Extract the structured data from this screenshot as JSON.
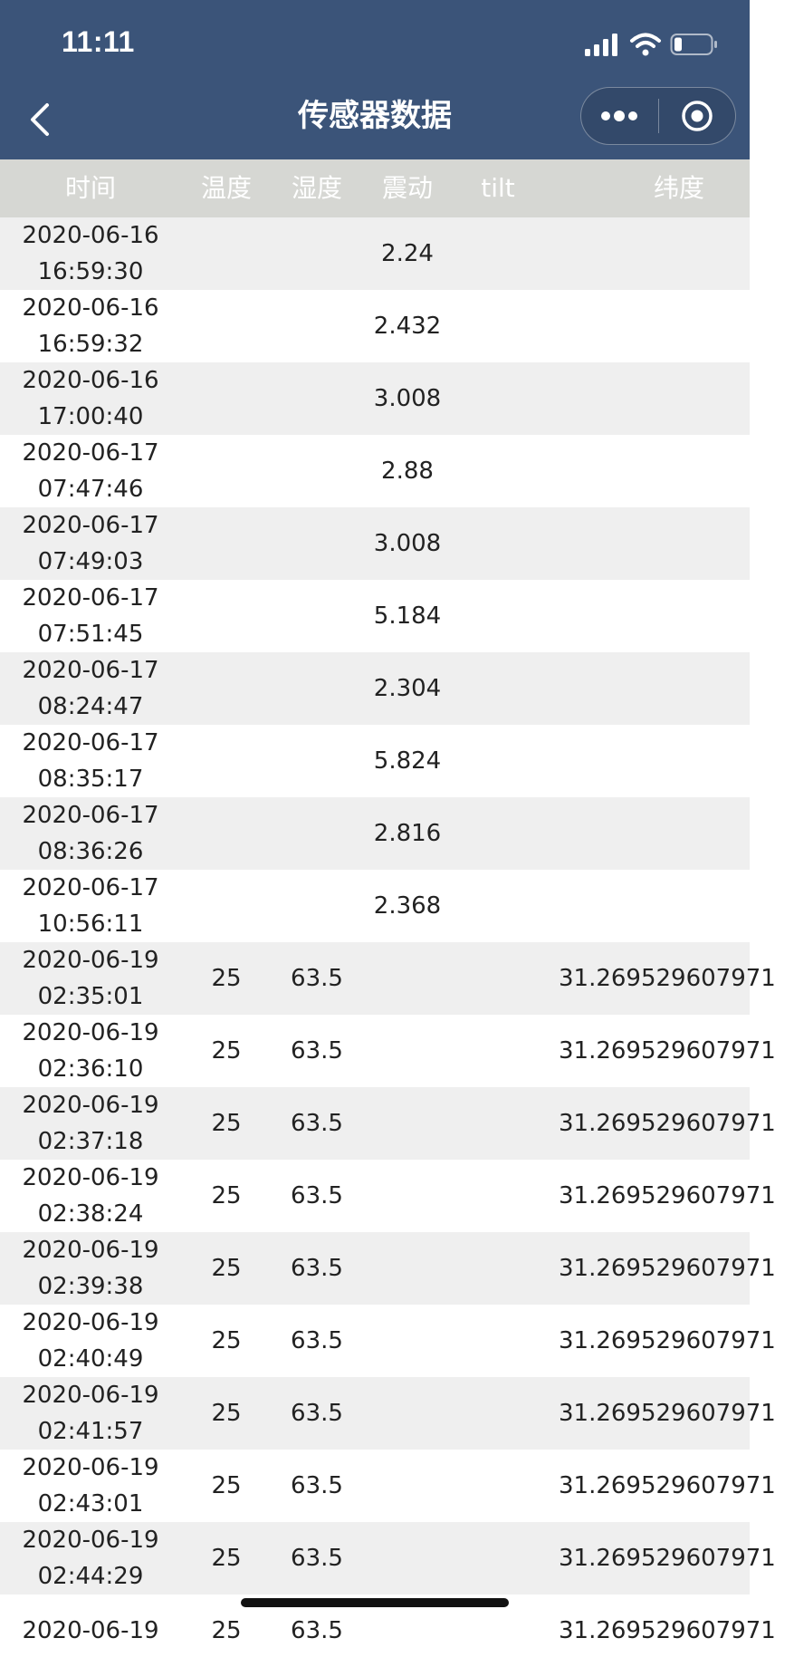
{
  "status_bar": {
    "time": "11:11"
  },
  "nav": {
    "title": "传感器数据"
  },
  "table": {
    "headers": {
      "time": "时间",
      "temperature": "温度",
      "humidity": "湿度",
      "vibration": "震动",
      "tilt": "tilt",
      "latitude": "纬度"
    },
    "rows": [
      {
        "date": "2020-06-16",
        "clock": "16:59:30",
        "temp": "",
        "hum": "",
        "vib": "2.24",
        "tilt": "",
        "lat": ""
      },
      {
        "date": "2020-06-16",
        "clock": "16:59:32",
        "temp": "",
        "hum": "",
        "vib": "2.432",
        "tilt": "",
        "lat": ""
      },
      {
        "date": "2020-06-16",
        "clock": "17:00:40",
        "temp": "",
        "hum": "",
        "vib": "3.008",
        "tilt": "",
        "lat": ""
      },
      {
        "date": "2020-06-17",
        "clock": "07:47:46",
        "temp": "",
        "hum": "",
        "vib": "2.88",
        "tilt": "",
        "lat": ""
      },
      {
        "date": "2020-06-17",
        "clock": "07:49:03",
        "temp": "",
        "hum": "",
        "vib": "3.008",
        "tilt": "",
        "lat": ""
      },
      {
        "date": "2020-06-17",
        "clock": "07:51:45",
        "temp": "",
        "hum": "",
        "vib": "5.184",
        "tilt": "",
        "lat": ""
      },
      {
        "date": "2020-06-17",
        "clock": "08:24:47",
        "temp": "",
        "hum": "",
        "vib": "2.304",
        "tilt": "",
        "lat": ""
      },
      {
        "date": "2020-06-17",
        "clock": "08:35:17",
        "temp": "",
        "hum": "",
        "vib": "5.824",
        "tilt": "",
        "lat": ""
      },
      {
        "date": "2020-06-17",
        "clock": "08:36:26",
        "temp": "",
        "hum": "",
        "vib": "2.816",
        "tilt": "",
        "lat": ""
      },
      {
        "date": "2020-06-17",
        "clock": "10:56:11",
        "temp": "",
        "hum": "",
        "vib": "2.368",
        "tilt": "",
        "lat": ""
      },
      {
        "date": "2020-06-19",
        "clock": "02:35:01",
        "temp": "25",
        "hum": "63.5",
        "vib": "",
        "tilt": "",
        "lat": "31.269529607971"
      },
      {
        "date": "2020-06-19",
        "clock": "02:36:10",
        "temp": "25",
        "hum": "63.5",
        "vib": "",
        "tilt": "",
        "lat": "31.269529607971"
      },
      {
        "date": "2020-06-19",
        "clock": "02:37:18",
        "temp": "25",
        "hum": "63.5",
        "vib": "",
        "tilt": "",
        "lat": "31.269529607971"
      },
      {
        "date": "2020-06-19",
        "clock": "02:38:24",
        "temp": "25",
        "hum": "63.5",
        "vib": "",
        "tilt": "",
        "lat": "31.269529607971"
      },
      {
        "date": "2020-06-19",
        "clock": "02:39:38",
        "temp": "25",
        "hum": "63.5",
        "vib": "",
        "tilt": "",
        "lat": "31.269529607971"
      },
      {
        "date": "2020-06-19",
        "clock": "02:40:49",
        "temp": "25",
        "hum": "63.5",
        "vib": "",
        "tilt": "",
        "lat": "31.269529607971"
      },
      {
        "date": "2020-06-19",
        "clock": "02:41:57",
        "temp": "25",
        "hum": "63.5",
        "vib": "",
        "tilt": "",
        "lat": "31.269529607971"
      },
      {
        "date": "2020-06-19",
        "clock": "02:43:01",
        "temp": "25",
        "hum": "63.5",
        "vib": "",
        "tilt": "",
        "lat": "31.269529607971"
      },
      {
        "date": "2020-06-19",
        "clock": "02:44:29",
        "temp": "25",
        "hum": "63.5",
        "vib": "",
        "tilt": "",
        "lat": "31.269529607971"
      },
      {
        "date": "2020-06-19",
        "clock": "",
        "temp": "25",
        "hum": "63.5",
        "vib": "",
        "tilt": "",
        "lat": "31.269529607971"
      }
    ]
  },
  "colors": {
    "nav_background": "#3b5479",
    "header_row_background": "#d6d7d3",
    "stripe_background": "#efefef"
  },
  "icons": {
    "back": "chevron-left-icon",
    "more": "more-dots-icon",
    "close": "record-circle-icon",
    "signal": "cellular-signal-icon",
    "wifi": "wifi-icon",
    "battery": "battery-icon"
  }
}
